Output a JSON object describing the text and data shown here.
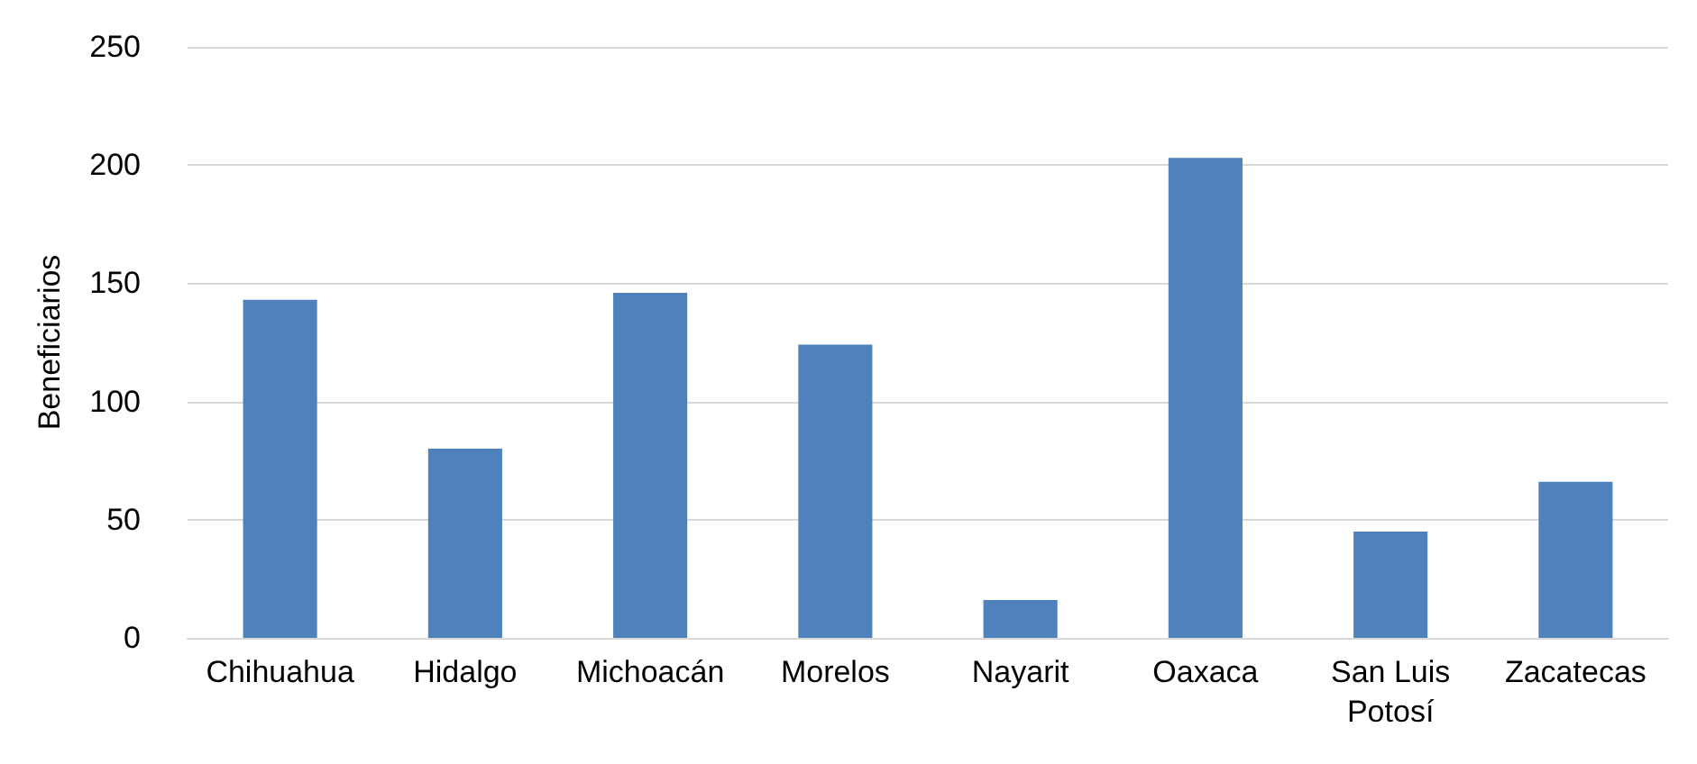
{
  "chart_data": {
    "type": "bar",
    "ylabel": "Beneficiarios",
    "categories": [
      "Chihuahua",
      "Hidalgo",
      "Michoacán",
      "Morelos",
      "Nayarit",
      "Oaxaca",
      "San Luis\nPotosí",
      "Zacatecas"
    ],
    "values": [
      143,
      80,
      146,
      124,
      16,
      203,
      45,
      66
    ],
    "color": "#4f81bd",
    "ylim": [
      0,
      250
    ],
    "yticks": [
      0,
      50,
      100,
      150,
      200,
      250
    ],
    "grid": "y"
  }
}
